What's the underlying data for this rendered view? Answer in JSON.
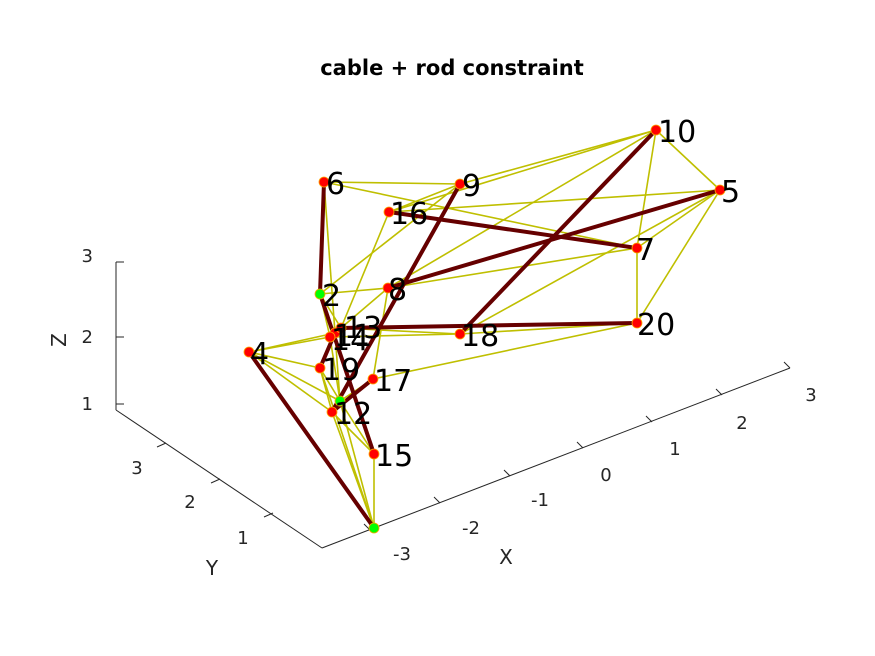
{
  "chart_data": {
    "type": "3d-network",
    "title": "cable + rod constraint",
    "xlabel": "X",
    "ylabel": "Y",
    "zlabel": "Z",
    "x_ticks": [
      "-3",
      "-2",
      "-1",
      "0",
      "1",
      "2",
      "3"
    ],
    "y_ticks": [
      "1",
      "2",
      "3"
    ],
    "z_ticks": [
      "1",
      "2",
      "3"
    ],
    "colors": {
      "cable": "#bfbf00",
      "rod": "#660000",
      "node_free": "#ff0000",
      "node_fixed": "#00ff00"
    },
    "nodes": [
      {
        "id": "1",
        "label": "",
        "fixed": true
      },
      {
        "id": "2",
        "label": "2",
        "fixed": true
      },
      {
        "id": "3",
        "label": "",
        "fixed": true
      },
      {
        "id": "4",
        "label": "4",
        "fixed": false
      },
      {
        "id": "5",
        "label": "5",
        "fixed": false
      },
      {
        "id": "6",
        "label": "6",
        "fixed": false
      },
      {
        "id": "7",
        "label": "7",
        "fixed": false
      },
      {
        "id": "8",
        "label": "8",
        "fixed": false
      },
      {
        "id": "9",
        "label": "9",
        "fixed": false
      },
      {
        "id": "10",
        "label": "10",
        "fixed": false
      },
      {
        "id": "11",
        "label": "11",
        "fixed": false
      },
      {
        "id": "12",
        "label": "12",
        "fixed": false
      },
      {
        "id": "13",
        "label": "13",
        "fixed": false
      },
      {
        "id": "14",
        "label": "14",
        "fixed": false
      },
      {
        "id": "15",
        "label": "15",
        "fixed": false
      },
      {
        "id": "16",
        "label": "16",
        "fixed": false
      },
      {
        "id": "17",
        "label": "17",
        "fixed": false
      },
      {
        "id": "18",
        "label": "18",
        "fixed": false
      },
      {
        "id": "19",
        "label": "19",
        "fixed": false
      },
      {
        "id": "20",
        "label": "20",
        "fixed": false
      }
    ],
    "rods": [
      [
        "4",
        "1"
      ],
      [
        "10",
        "18"
      ],
      [
        "5",
        "8"
      ],
      [
        "16",
        "7"
      ],
      [
        "9",
        "12"
      ],
      [
        "13",
        "20"
      ],
      [
        "6",
        "2"
      ],
      [
        "2",
        "15"
      ],
      [
        "17",
        "12"
      ],
      [
        "19",
        "11"
      ]
    ],
    "cables": [
      [
        "6",
        "9"
      ],
      [
        "6",
        "7"
      ],
      [
        "9",
        "10"
      ],
      [
        "9",
        "16"
      ],
      [
        "16",
        "10"
      ],
      [
        "16",
        "5"
      ],
      [
        "10",
        "5"
      ],
      [
        "10",
        "7"
      ],
      [
        "10",
        "8"
      ],
      [
        "5",
        "7"
      ],
      [
        "5",
        "20"
      ],
      [
        "5",
        "18"
      ],
      [
        "7",
        "20"
      ],
      [
        "7",
        "8"
      ],
      [
        "16",
        "13"
      ],
      [
        "9",
        "2"
      ],
      [
        "6",
        "11"
      ],
      [
        "2",
        "8"
      ],
      [
        "8",
        "13"
      ],
      [
        "8",
        "17"
      ],
      [
        "2",
        "13"
      ],
      [
        "2",
        "14"
      ],
      [
        "13",
        "18"
      ],
      [
        "14",
        "18"
      ],
      [
        "18",
        "20"
      ],
      [
        "20",
        "17"
      ],
      [
        "4",
        "14"
      ],
      [
        "4",
        "11"
      ],
      [
        "4",
        "19"
      ],
      [
        "4",
        "12"
      ],
      [
        "4",
        "3"
      ],
      [
        "19",
        "12"
      ],
      [
        "19",
        "3"
      ],
      [
        "19",
        "1"
      ],
      [
        "11",
        "3"
      ],
      [
        "12",
        "15"
      ],
      [
        "12",
        "1"
      ],
      [
        "3",
        "15"
      ],
      [
        "17",
        "3"
      ],
      [
        "15",
        "1"
      ],
      [
        "14",
        "3"
      ],
      [
        "11",
        "14"
      ],
      [
        "13",
        "14"
      ],
      [
        "3",
        "1"
      ]
    ]
  }
}
